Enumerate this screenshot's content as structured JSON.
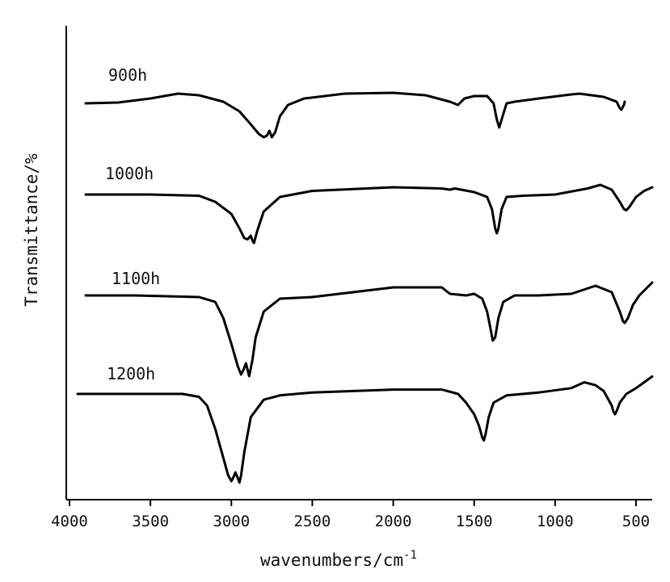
{
  "chart_data": {
    "type": "line",
    "xlabel": "wavenumbers/cm",
    "xlabel_superscript": "-1",
    "ylabel": "Transmittance/%",
    "xlim": [
      4000,
      400
    ],
    "x_reversed": true,
    "y_ticks_shown": false,
    "grid": false,
    "legend": "none (series labels placed above each curve)",
    "x_ticks": [
      4000,
      3500,
      3000,
      2500,
      2000,
      1500,
      1000,
      500
    ],
    "x_tick_labels": [
      "4000",
      "3500",
      "3000",
      "2500",
      "2000",
      "1500",
      "1000",
      "500"
    ],
    "y_unit_note": "relative transmittance (arbitrary units, 100 = baseline, curves vertically offset)",
    "series": [
      {
        "name": "900h",
        "offset": 0,
        "x": [
          3900,
          3700,
          3500,
          3330,
          3200,
          3050,
          2950,
          2880,
          2830,
          2800,
          2780,
          2765,
          2750,
          2730,
          2700,
          2650,
          2550,
          2300,
          2000,
          1800,
          1650,
          1600,
          1560,
          1500,
          1420,
          1380,
          1360,
          1345,
          1330,
          1300,
          1250,
          1100,
          900,
          850,
          700,
          620,
          600,
          590,
          580,
          575,
          570
        ],
        "y": [
          100,
          100.5,
          103,
          106,
          105,
          101,
          95,
          87,
          81,
          79,
          80,
          83,
          79,
          82,
          92,
          99,
          103,
          106,
          106.5,
          105,
          101,
          99,
          103,
          104.5,
          104.5,
          100,
          90,
          85,
          90,
          100,
          101,
          103,
          105.5,
          106,
          104,
          101,
          97,
          96,
          98,
          99,
          101
        ]
      },
      {
        "name": "1000h",
        "offset": 0,
        "x": [
          3900,
          3500,
          3200,
          3100,
          3000,
          2950,
          2920,
          2900,
          2880,
          2870,
          2860,
          2840,
          2800,
          2700,
          2500,
          2000,
          1700,
          1650,
          1620,
          1500,
          1420,
          1390,
          1370,
          1360,
          1350,
          1330,
          1300,
          1200,
          1000,
          800,
          720,
          650,
          600,
          575,
          560,
          540,
          500,
          450,
          400
        ],
        "y": [
          100,
          100,
          99.5,
          97,
          92,
          86,
          82,
          81.5,
          83,
          81,
          80,
          85,
          93,
          99,
          101.5,
          103,
          102.5,
          102,
          102.5,
          101,
          99,
          94,
          86,
          84,
          86,
          94,
          99,
          99.5,
          100,
          102.5,
          104,
          102,
          97,
          94,
          93.5,
          95,
          99,
          101.5,
          103
        ]
      },
      {
        "name": "1100h",
        "offset": 0,
        "x": [
          3900,
          3600,
          3200,
          3100,
          3050,
          3000,
          2960,
          2940,
          2925,
          2910,
          2900,
          2890,
          2870,
          2850,
          2800,
          2700,
          2500,
          2000,
          1700,
          1650,
          1550,
          1500,
          1450,
          1420,
          1400,
          1385,
          1370,
          1350,
          1320,
          1250,
          1100,
          900,
          750,
          650,
          600,
          580,
          570,
          550,
          520,
          480,
          430,
          400
        ],
        "y": [
          100,
          100,
          99.5,
          98,
          93,
          85,
          78,
          75.5,
          77,
          79,
          77,
          75,
          80,
          87,
          95,
          99,
          99.5,
          102.5,
          102.5,
          100.5,
          100,
          100.5,
          99,
          95,
          90,
          86,
          87,
          93,
          98,
          100,
          100,
          100.5,
          103,
          101,
          95,
          92,
          91.5,
          93,
          97,
          100,
          102.5,
          104
        ]
      },
      {
        "name": "1200h",
        "offset": 0,
        "x": [
          3950,
          3700,
          3300,
          3200,
          3150,
          3100,
          3050,
          3020,
          3000,
          2990,
          2975,
          2960,
          2950,
          2940,
          2920,
          2880,
          2800,
          2700,
          2500,
          2000,
          1700,
          1600,
          1550,
          1500,
          1470,
          1450,
          1440,
          1430,
          1410,
          1380,
          1300,
          1100,
          900,
          820,
          750,
          700,
          650,
          640,
          630,
          620,
          600,
          560,
          500,
          450,
          400
        ],
        "y": [
          100,
          100,
          100,
          99,
          96,
          88,
          78,
          72,
          70,
          71,
          73,
          71,
          69.5,
          72,
          80,
          92,
          98,
          99.5,
          100.5,
          101.5,
          101.5,
          100,
          97,
          93,
          89,
          85,
          84,
          86,
          92,
          97,
          99.5,
          100.5,
          102,
          104,
          103,
          101,
          96,
          94,
          93,
          94,
          97,
          100,
          102,
          104,
          106
        ]
      }
    ]
  }
}
